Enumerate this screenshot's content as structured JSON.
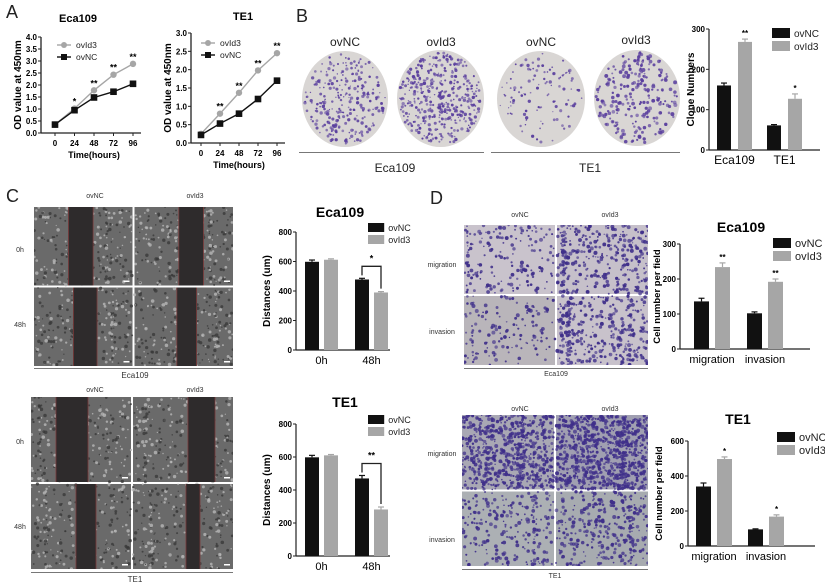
{
  "panels": {
    "A": {
      "letter": "A"
    },
    "B": {
      "letter": "B",
      "groups": [
        {
          "label": "ovNC"
        },
        {
          "label": "ovId3"
        },
        {
          "label": "ovNC"
        },
        {
          "label": "ovId3"
        }
      ],
      "cell_lines": [
        "Eca109",
        "TE1"
      ]
    },
    "C": {
      "letter": "C",
      "col_labels": [
        "ovNC",
        "ovId3"
      ],
      "row_labels": [
        "0h",
        "48h"
      ],
      "eca_label": "Eca109",
      "te1_label": "TE1"
    },
    "D": {
      "letter": "D",
      "col_labels": [
        "ovNC",
        "ovId3"
      ],
      "row_labels": [
        "migration",
        "invasion"
      ],
      "eca_label": "Eca109",
      "te1_label": "TE1"
    }
  },
  "colors": {
    "ovNC": "#111111",
    "ovId3": "#a6a6a6",
    "crystal_violet": "#5a3f9e",
    "plate_bg": "#d9d6d4"
  },
  "chart_data": [
    {
      "id": "A-Eca109",
      "type": "line",
      "title": "Eca109",
      "xlabel": "Time(hours)",
      "ylabel": "OD value at 450nm",
      "x": [
        0,
        24,
        48,
        72,
        96
      ],
      "ylim": [
        0,
        4.0
      ],
      "yticks": [
        "0.0",
        "0.5",
        "1.0",
        "1.5",
        "2.0",
        "2.5",
        "3.0",
        "3.5",
        "4.0"
      ],
      "series": [
        {
          "name": "ovId3",
          "marker": "circle",
          "values": [
            0.35,
            1.02,
            1.78,
            2.43,
            2.88
          ]
        },
        {
          "name": "ovNC",
          "marker": "square",
          "values": [
            0.35,
            0.95,
            1.48,
            1.72,
            2.05
          ]
        }
      ],
      "significance": [
        "",
        "*",
        "**",
        "**",
        "**"
      ],
      "legend": [
        "ovId3",
        "ovNC"
      ]
    },
    {
      "id": "A-TE1",
      "type": "line",
      "title": "TE1",
      "xlabel": "Time(hours)",
      "ylabel": "OD value at 450nm",
      "x": [
        0,
        24,
        48,
        72,
        96
      ],
      "ylim": [
        0,
        3.0
      ],
      "yticks": [
        "0.0",
        "0.5",
        "1.0",
        "1.5",
        "2.0",
        "2.5",
        "3.0"
      ],
      "series": [
        {
          "name": "ovId3",
          "marker": "circle",
          "values": [
            0.25,
            0.8,
            1.37,
            1.98,
            2.45
          ]
        },
        {
          "name": "ovNC",
          "marker": "square",
          "values": [
            0.22,
            0.53,
            0.8,
            1.2,
            1.7
          ]
        }
      ],
      "significance": [
        "",
        "**",
        "**",
        "**",
        "**"
      ],
      "legend": [
        "ovId3",
        "ovNC"
      ]
    },
    {
      "id": "B-clone",
      "type": "bar",
      "title": "",
      "xlabel": "",
      "ylabel": "Clone Numbers",
      "categories": [
        "Eca109",
        "TE1"
      ],
      "ylim": [
        0,
        300
      ],
      "yticks": [
        "0",
        "100",
        "200",
        "300"
      ],
      "series": [
        {
          "name": "ovNC",
          "values": [
            160,
            61
          ],
          "errors": [
            6,
            2
          ]
        },
        {
          "name": "ovId3",
          "values": [
            268,
            127
          ],
          "errors": [
            7,
            12
          ]
        }
      ],
      "significance": [
        "**",
        "*"
      ],
      "legend": [
        "ovNC",
        "ovId3"
      ]
    },
    {
      "id": "C-Eca109",
      "type": "bar",
      "title": "Eca109",
      "xlabel": "",
      "ylabel": "Distances (um)",
      "categories": [
        "0h",
        "48h"
      ],
      "ylim": [
        0,
        800
      ],
      "yticks": [
        "0",
        "200",
        "400",
        "600",
        "800"
      ],
      "series": [
        {
          "name": "ovNC",
          "values": [
            598,
            478
          ],
          "errors": [
            12,
            8
          ]
        },
        {
          "name": "ovId3",
          "values": [
            612,
            390
          ],
          "errors": [
            6,
            6
          ]
        }
      ],
      "significance": [
        "",
        "*"
      ],
      "legend": [
        "ovNC",
        "ovId3"
      ]
    },
    {
      "id": "C-TE1",
      "type": "bar",
      "title": "TE1",
      "xlabel": "",
      "ylabel": "Distances (um)",
      "categories": [
        "0h",
        "48h"
      ],
      "ylim": [
        0,
        800
      ],
      "yticks": [
        "0",
        "200",
        "400",
        "600",
        "800"
      ],
      "series": [
        {
          "name": "ovNC",
          "values": [
            598,
            470
          ],
          "errors": [
            12,
            18
          ]
        },
        {
          "name": "ovId3",
          "values": [
            610,
            282
          ],
          "errors": [
            5,
            15
          ]
        }
      ],
      "significance": [
        "",
        "**"
      ],
      "legend": [
        "ovNC",
        "ovId3"
      ]
    },
    {
      "id": "D-Eca109",
      "type": "bar",
      "title": "Eca109",
      "xlabel": "",
      "ylabel": "Cell number per field",
      "categories": [
        "migration",
        "invasion"
      ],
      "ylim": [
        0,
        300
      ],
      "yticks": [
        "0",
        "100",
        "200",
        "300"
      ],
      "series": [
        {
          "name": "ovNC",
          "values": [
            136,
            102
          ],
          "errors": [
            9,
            4
          ]
        },
        {
          "name": "ovId3",
          "values": [
            234,
            192
          ],
          "errors": [
            12,
            8
          ]
        }
      ],
      "significance": [
        "**",
        "**"
      ],
      "legend": [
        "ovNC",
        "ovId3"
      ]
    },
    {
      "id": "D-TE1",
      "type": "bar",
      "title": "TE1",
      "xlabel": "",
      "ylabel": "Cell number per field",
      "categories": [
        "migration",
        "invasion"
      ],
      "ylim": [
        0,
        600
      ],
      "yticks": [
        "0",
        "200",
        "400",
        "600"
      ],
      "series": [
        {
          "name": "ovNC",
          "values": [
            340,
            95
          ],
          "errors": [
            20,
            3
          ]
        },
        {
          "name": "ovId3",
          "values": [
            497,
            168
          ],
          "errors": [
            12,
            10
          ]
        }
      ],
      "significance": [
        "*",
        "*"
      ],
      "legend": [
        "ovNC",
        "ovId3"
      ]
    }
  ]
}
